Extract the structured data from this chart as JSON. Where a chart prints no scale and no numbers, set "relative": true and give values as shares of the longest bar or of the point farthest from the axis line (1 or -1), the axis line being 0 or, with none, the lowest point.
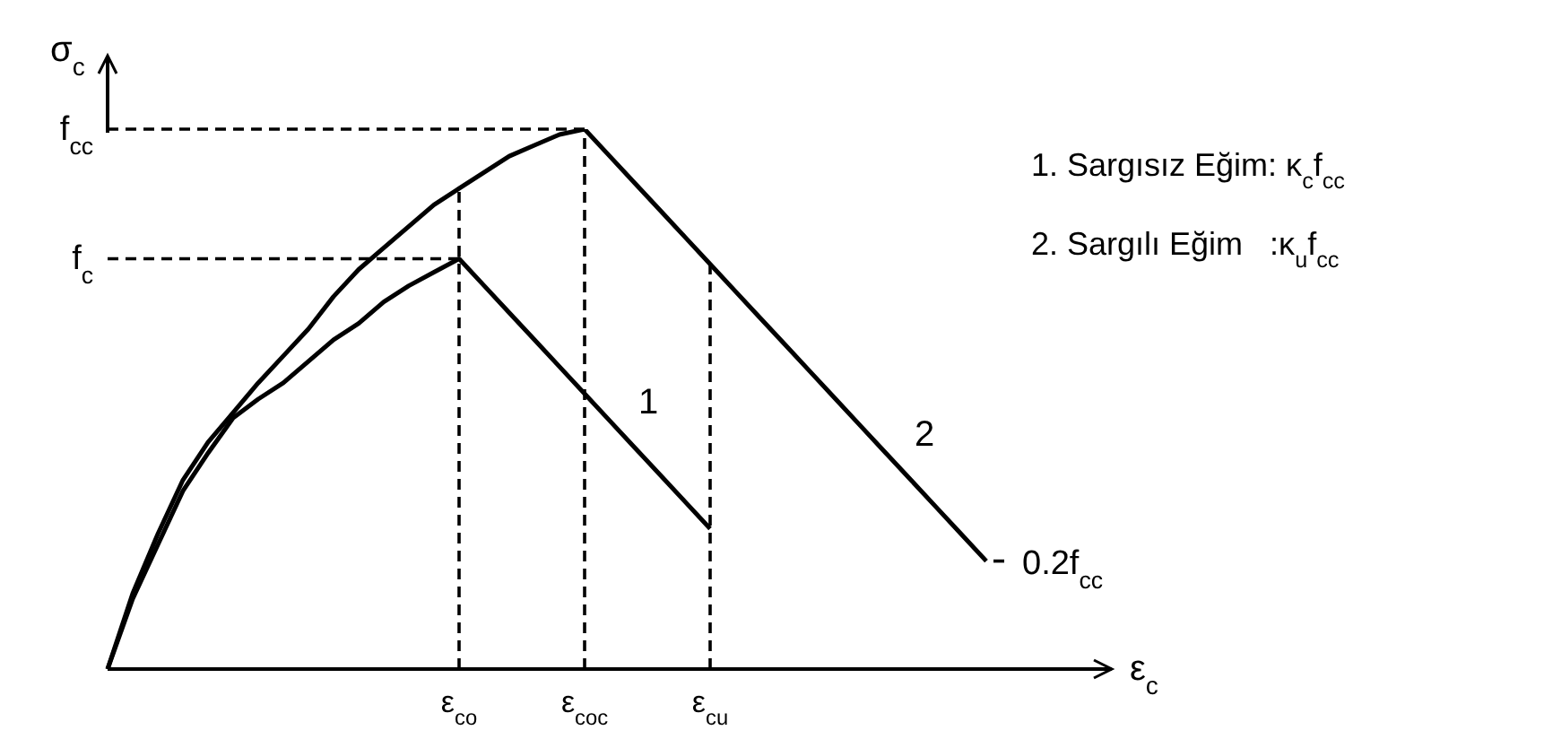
{
  "chart_data": {
    "type": "line",
    "relative": true,
    "xlabel": "ε$_{c}$",
    "ylabel": "σ$_{c}$",
    "categories": [
      null,
      null,
      null,
      null,
      null,
      null,
      null,
      null,
      null,
      null,
      null,
      null,
      null,
      null,
      "ε$_{co}$",
      null,
      null,
      null,
      null,
      "ε$_{coc}$",
      null,
      null,
      null,
      null,
      "ε$_{cu}$",
      null,
      null,
      null,
      null,
      null,
      null,
      null,
      null,
      null,
      null,
      null,
      null,
      null,
      null,
      null,
      null
    ],
    "marker": "none",
    "line_style": "solid",
    "series": [
      {
        "name": "1",
        "color": "#000000",
        "values": [
          0,
          0.13,
          0.23,
          0.33,
          0.4,
          0.465,
          0.5,
          0.53,
          0.57,
          0.61,
          0.64,
          0.68,
          0.71,
          0.735,
          0.76,
          0.71,
          0.66,
          0.61,
          0.56,
          0.51,
          0.46,
          0.41,
          0.36,
          0.31,
          0.26,
          null,
          null,
          null,
          null,
          null,
          null,
          null,
          null,
          null,
          null,
          null,
          null,
          null,
          null,
          null,
          null
        ]
      },
      {
        "name": "2",
        "color": "#000000",
        "values": [
          0,
          0.14,
          0.25,
          0.35,
          0.42,
          0.475,
          0.53,
          0.58,
          0.63,
          0.69,
          0.74,
          0.78,
          0.82,
          0.86,
          0.89,
          0.92,
          0.95,
          0.97,
          0.99,
          1,
          0.95,
          0.9,
          0.85,
          0.8,
          0.75,
          0.7,
          0.65,
          0.6,
          0.55,
          0.5,
          0.45,
          0.4,
          0.35,
          0.3,
          0.25,
          0.2,
          null,
          null,
          null,
          null,
          null
        ]
      }
    ],
    "ref_lines": [
      {
        "axis": "y",
        "value": 1,
        "label": "f$_{cc}$",
        "line_style": "dashed",
        "color": "#000000"
      },
      {
        "axis": "y",
        "value": 0.76,
        "label": "f$_{c}$",
        "line_style": "dashed",
        "color": "#000000"
      },
      {
        "axis": "y",
        "value": 0.2,
        "label": "0.2f$_{cc}$",
        "line_style": "dashed",
        "color": "#000000"
      },
      {
        "axis": "x",
        "value": "ε$_{co}$",
        "line_style": "dashed",
        "color": "#000000"
      },
      {
        "axis": "x",
        "value": "ε$_{coc}$",
        "line_style": "dashed",
        "color": "#000000"
      },
      {
        "axis": "x",
        "value": "ε$_{cu}$",
        "line_style": "dashed",
        "color": "#000000"
      }
    ],
    "annotations": [
      "1. Sargısız Eğim: κ$_{c}$f$_{cc}$",
      "2. Sargılı Eğim   :κ$_{u}$f$_{cc}$"
    ]
  }
}
